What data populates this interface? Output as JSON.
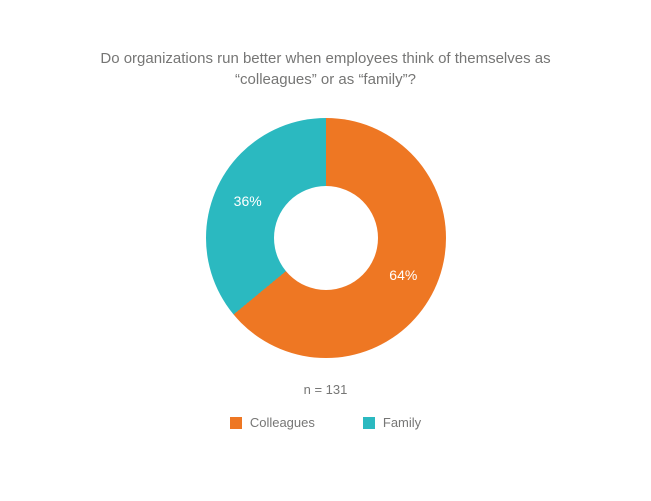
{
  "chart": {
    "type": "donut",
    "title": "Do organizations run better when employees think of themselves as “colleagues” or as “family”?",
    "n_label": "n = 131",
    "background_color": "#ffffff",
    "text_color": "#767675",
    "title_fontsize": 15,
    "label_fontsize": 14,
    "legend_fontsize": 13,
    "outer_diameter": 240,
    "inner_diameter": 104,
    "start_angle_deg": 0,
    "slices": [
      {
        "key": "colleagues",
        "label": "Colleagues",
        "value": 64,
        "percent_label": "64%",
        "color": "#ee7723"
      },
      {
        "key": "family",
        "label": "Family",
        "value": 36,
        "percent_label": "36%",
        "color": "#2bb9c0"
      }
    ],
    "legend": [
      {
        "label": "Colleagues",
        "color": "#ee7723"
      },
      {
        "label": "Family",
        "color": "#2bb9c0"
      }
    ]
  }
}
